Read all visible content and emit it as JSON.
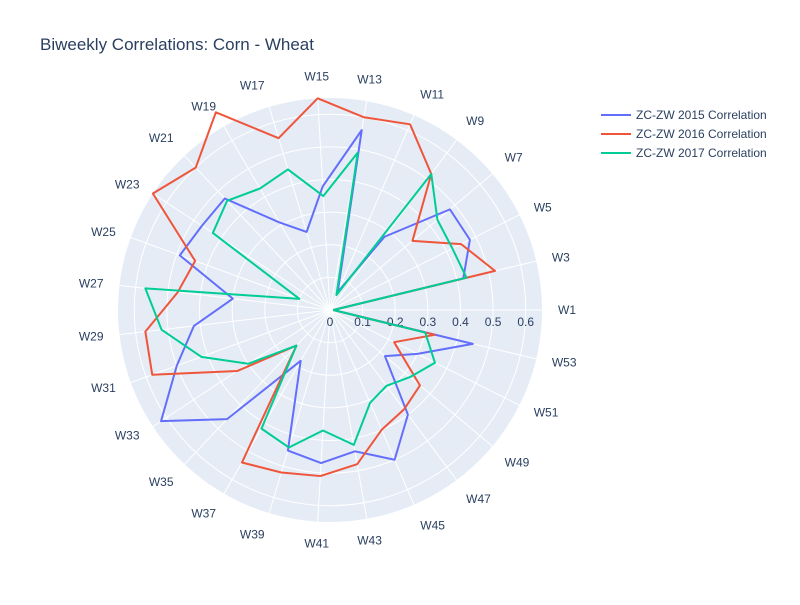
{
  "chart_data": {
    "type": "line",
    "subtype": "polar",
    "title": "Biweekly Correlations: Corn - Wheat",
    "categories": [
      "W1",
      "W3",
      "W5",
      "W7",
      "W9",
      "W11",
      "W13",
      "W15",
      "W17",
      "W19",
      "W21",
      "W23",
      "W25",
      "W27",
      "W29",
      "W31",
      "W33",
      "W35",
      "W37",
      "W39",
      "W41",
      "W43",
      "W45",
      "W47",
      "W49",
      "W51",
      "W53"
    ],
    "radial_axis": {
      "range": [
        0,
        0.65
      ],
      "ticks": [
        0,
        0.1,
        0.2,
        0.3,
        0.4,
        0.5,
        0.6
      ],
      "tick_labels": [
        "0",
        "0.1",
        "0.2",
        "0.3",
        "0.4",
        "0.5",
        "0.6"
      ]
    },
    "series": [
      {
        "name": "ZC-ZW 2015 Correlation",
        "color": "#636efa",
        "values": [
          0.01,
          0.42,
          0.48,
          0.48,
          0.28,
          0.06,
          0.56,
          0.38,
          0.25,
          0.31,
          0.47,
          0.47,
          0.49,
          0.3,
          0.42,
          0.5,
          0.62,
          0.46,
          0.18,
          0.45,
          0.47,
          0.44,
          0.5,
          0.4,
          0.22,
          0.3,
          0.45
        ]
      },
      {
        "name": "ZC-ZW 2016 Correlation",
        "color": "#ef553b",
        "values": [
          0.01,
          0.52,
          0.45,
          0.33,
          0.52,
          0.62,
          0.6,
          0.65,
          0.55,
          0.7,
          0.6,
          0.65,
          0.44,
          0.47,
          0.57,
          0.58,
          0.34,
          0.15,
          0.54,
          0.52,
          0.51,
          0.48,
          0.4,
          0.38,
          0.36,
          0.22,
          0.33
        ]
      },
      {
        "name": "ZC-ZW 2017 Correlation",
        "color": "#00cc96",
        "values": [
          0.01,
          0.43,
          0.42,
          0.43,
          0.52,
          0.05,
          0.49,
          0.35,
          0.45,
          0.43,
          0.46,
          0.43,
          0.1,
          0.57,
          0.52,
          0.42,
          0.3,
          0.15,
          0.42,
          0.44,
          0.37,
          0.42,
          0.31,
          0.29,
          0.32,
          0.36,
          0.3
        ]
      }
    ],
    "legend_position": "top-right",
    "grid": true,
    "colors": {
      "plot_bg": "#e5ecf6",
      "grid": "#ffffff",
      "text": "#2a3f5f"
    }
  }
}
